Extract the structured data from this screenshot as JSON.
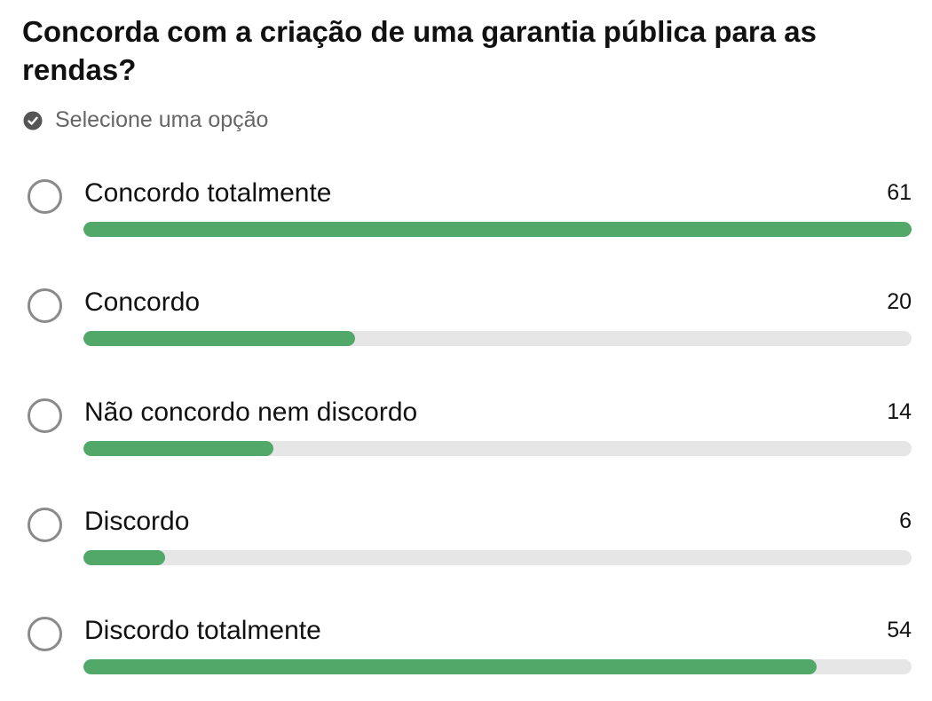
{
  "question": "Concorda com a criação de uma garantia pública para as rendas?",
  "hint": "Selecione uma opção",
  "options": [
    {
      "label": "Concordo totalmente",
      "votes": 61
    },
    {
      "label": "Concordo",
      "votes": 20
    },
    {
      "label": "Não concordo nem discordo",
      "votes": 14
    },
    {
      "label": "Discordo",
      "votes": 6
    },
    {
      "label": "Discordo totalmente",
      "votes": 54
    }
  ]
}
